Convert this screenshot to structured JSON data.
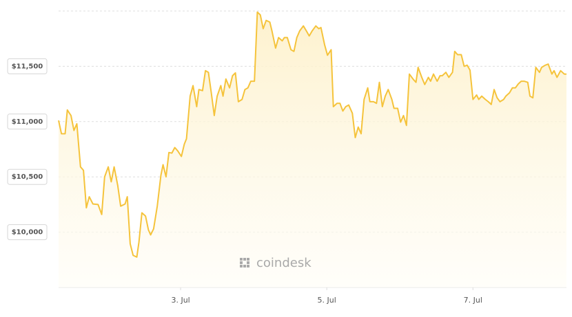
{
  "chart_data": {
    "type": "line",
    "watermark": "coindesk",
    "x": [
      1.33,
      1.37,
      1.42,
      1.45,
      1.5,
      1.54,
      1.58,
      1.63,
      1.67,
      1.71,
      1.75,
      1.8,
      1.87,
      1.92,
      1.96,
      2.01,
      2.05,
      2.09,
      2.14,
      2.18,
      2.24,
      2.27,
      2.31,
      2.35,
      2.4,
      2.43,
      2.47,
      2.52,
      2.56,
      2.59,
      2.63,
      2.68,
      2.73,
      2.76,
      2.8,
      2.84,
      2.88,
      2.92,
      2.96,
      3.01,
      3.05,
      3.08,
      3.13,
      3.17,
      3.22,
      3.25,
      3.3,
      3.34,
      3.38,
      3.42,
      3.46,
      3.5,
      3.55,
      3.58,
      3.62,
      3.67,
      3.71,
      3.75,
      3.79,
      3.84,
      3.88,
      3.92,
      3.96,
      4.01,
      4.05,
      4.09,
      4.13,
      4.17,
      4.22,
      4.25,
      4.3,
      4.34,
      4.39,
      4.42,
      4.46,
      4.51,
      4.55,
      4.59,
      4.63,
      4.68,
      4.72,
      4.76,
      4.8,
      4.85,
      4.89,
      4.92,
      4.97,
      5.01,
      5.06,
      5.09,
      5.14,
      5.18,
      5.22,
      5.26,
      5.3,
      5.35,
      5.39,
      5.43,
      5.47,
      5.51,
      5.56,
      5.59,
      5.64,
      5.68,
      5.72,
      5.76,
      5.8,
      5.84,
      5.89,
      5.92,
      5.97,
      6.01,
      6.05,
      6.09,
      6.13,
      6.18,
      6.22,
      6.25,
      6.3,
      6.34,
      6.39,
      6.42,
      6.46,
      6.51,
      6.55,
      6.58,
      6.63,
      6.67,
      6.72,
      6.75,
      6.79,
      6.84,
      6.88,
      6.92,
      6.96,
      7.0,
      7.05,
      7.08,
      7.12,
      7.17,
      7.21,
      7.25,
      7.29,
      7.33,
      7.37,
      7.42,
      7.45,
      7.5,
      7.54,
      7.58,
      7.62,
      7.66,
      7.7,
      7.75,
      7.78,
      7.82,
      7.86,
      7.91,
      7.94,
      7.99,
      8.03,
      8.08,
      8.11,
      8.15,
      8.2,
      8.25,
      8.28
    ],
    "values": [
      11010,
      10890,
      10890,
      11105,
      11055,
      10920,
      10980,
      10590,
      10560,
      10220,
      10320,
      10255,
      10250,
      10160,
      10500,
      10590,
      10455,
      10590,
      10420,
      10235,
      10255,
      10320,
      9895,
      9790,
      9775,
      9910,
      10175,
      10145,
      10020,
      9975,
      10030,
      10235,
      10515,
      10610,
      10500,
      10720,
      10715,
      10765,
      10735,
      10685,
      10795,
      10845,
      11230,
      11325,
      11135,
      11290,
      11280,
      11460,
      11445,
      11260,
      11055,
      11230,
      11325,
      11230,
      11385,
      11305,
      11415,
      11440,
      11180,
      11200,
      11290,
      11305,
      11365,
      11365,
      11990,
      11965,
      11840,
      11915,
      11900,
      11820,
      11665,
      11760,
      11730,
      11760,
      11760,
      11650,
      11635,
      11760,
      11820,
      11865,
      11820,
      11775,
      11820,
      11865,
      11840,
      11850,
      11695,
      11600,
      11650,
      11135,
      11165,
      11165,
      11095,
      11135,
      11150,
      11075,
      10855,
      10950,
      10890,
      11200,
      11305,
      11180,
      11180,
      11165,
      11355,
      11135,
      11230,
      11290,
      11200,
      11120,
      11120,
      10995,
      11055,
      10965,
      11430,
      11385,
      11355,
      11490,
      11400,
      11335,
      11400,
      11365,
      11430,
      11365,
      11415,
      11415,
      11445,
      11400,
      11445,
      11635,
      11605,
      11605,
      11500,
      11510,
      11465,
      11200,
      11240,
      11200,
      11230,
      11200,
      11180,
      11155,
      11290,
      11215,
      11180,
      11200,
      11230,
      11260,
      11305,
      11305,
      11340,
      11365,
      11365,
      11355,
      11230,
      11215,
      11490,
      11445,
      11490,
      11510,
      11520,
      11430,
      11460,
      11400,
      11460,
      11430,
      11430
    ],
    "color": "#f5c33b",
    "fill": "#fdf6e2",
    "xlim": [
      1.33,
      8.28
    ],
    "xticks": [
      {
        "value": 3,
        "label": "3. Jul"
      },
      {
        "value": 5,
        "label": "5. Jul"
      },
      {
        "value": 7,
        "label": "7. Jul"
      }
    ],
    "ylim": [
      9500,
      12000
    ],
    "yticks": [
      {
        "value": 10000,
        "label": "$10,000"
      },
      {
        "value": 10500,
        "label": "$10,500"
      },
      {
        "value": 11000,
        "label": "$11,000"
      },
      {
        "value": 11500,
        "label": "$11,500"
      }
    ],
    "grid": true
  }
}
